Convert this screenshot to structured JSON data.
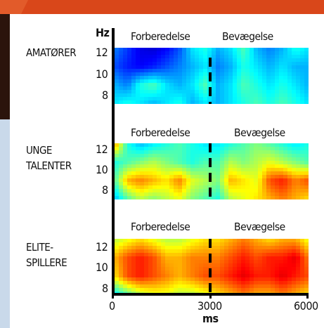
{
  "chart_data": {
    "type": "heatmap",
    "title": "",
    "ylabel": "Hz",
    "xlabel": "ms",
    "x_ticks": [
      "0",
      "3000",
      "6000"
    ],
    "xlim": [
      0,
      6000
    ],
    "y_ticks": [
      "12",
      "10",
      "8"
    ],
    "ylim": [
      7,
      13
    ],
    "phase_labels": [
      "Forberedelse",
      "Bevægelse"
    ],
    "marker_x": 3000,
    "panels": [
      {
        "group_line1": "AMATØRER",
        "group_line2": "",
        "intensity_grid": [
          [
            0.25,
            0.18,
            0.1,
            0.08,
            0.12,
            0.2,
            0.35,
            0.4,
            0.3,
            0.35,
            0.45,
            0.3,
            0.25,
            0.3,
            0.4,
            0.35
          ],
          [
            0.2,
            0.15,
            0.12,
            0.15,
            0.2,
            0.25,
            0.3,
            0.35,
            0.25,
            0.3,
            0.4,
            0.35,
            0.3,
            0.35,
            0.3,
            0.3
          ],
          [
            0.3,
            0.25,
            0.4,
            0.45,
            0.35,
            0.3,
            0.35,
            0.45,
            0.3,
            0.35,
            0.45,
            0.4,
            0.35,
            0.4,
            0.35,
            0.3
          ],
          [
            0.35,
            0.4,
            0.35,
            0.3,
            0.35,
            0.4,
            0.3,
            0.35,
            0.3,
            0.35,
            0.4,
            0.45,
            0.4,
            0.45,
            0.4,
            0.35
          ]
        ]
      },
      {
        "group_line1": "UNGE",
        "group_line2": "TALENTER",
        "intensity_grid": [
          [
            0.75,
            0.4,
            0.3,
            0.35,
            0.4,
            0.45,
            0.4,
            0.35,
            0.35,
            0.4,
            0.45,
            0.5,
            0.45,
            0.4,
            0.35,
            0.4
          ],
          [
            0.4,
            0.45,
            0.5,
            0.55,
            0.5,
            0.45,
            0.4,
            0.45,
            0.45,
            0.55,
            0.5,
            0.55,
            0.6,
            0.55,
            0.5,
            0.45
          ],
          [
            0.45,
            0.7,
            0.75,
            0.7,
            0.65,
            0.75,
            0.6,
            0.55,
            0.5,
            0.7,
            0.65,
            0.6,
            0.8,
            0.85,
            0.75,
            0.8
          ],
          [
            0.3,
            0.45,
            0.55,
            0.5,
            0.55,
            0.6,
            0.5,
            0.45,
            0.4,
            0.55,
            0.6,
            0.65,
            0.7,
            0.75,
            0.7,
            0.65
          ]
        ]
      },
      {
        "group_line1": "ELITE-",
        "group_line2": "SPILLERE",
        "intensity_grid": [
          [
            0.55,
            0.6,
            0.65,
            0.6,
            0.55,
            0.55,
            0.6,
            0.65,
            0.65,
            0.7,
            0.75,
            0.7,
            0.65,
            0.7,
            0.7,
            0.6
          ],
          [
            0.7,
            0.8,
            0.85,
            0.8,
            0.7,
            0.7,
            0.75,
            0.75,
            0.75,
            0.8,
            0.85,
            0.8,
            0.85,
            0.85,
            0.9,
            0.75
          ],
          [
            0.65,
            0.8,
            0.85,
            0.8,
            0.75,
            0.7,
            0.75,
            0.8,
            0.8,
            0.85,
            0.9,
            0.85,
            0.85,
            0.9,
            0.85,
            0.8
          ],
          [
            0.35,
            0.45,
            0.55,
            0.6,
            0.6,
            0.55,
            0.55,
            0.6,
            0.65,
            0.7,
            0.75,
            0.7,
            0.7,
            0.75,
            0.7,
            0.65
          ]
        ]
      }
    ]
  },
  "colors": {
    "frame_orange": "#d9471a",
    "frame_dark": "#3a1a10",
    "frame_light_blue": "#c9d9ea"
  }
}
